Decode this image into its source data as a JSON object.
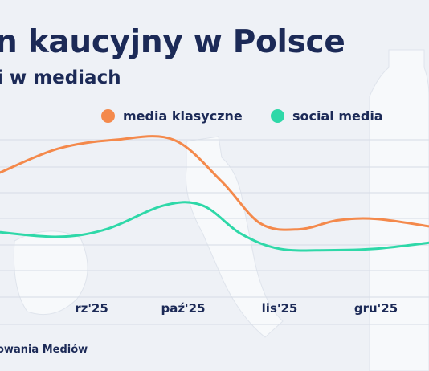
{
  "header": {
    "title": "n kaucyjny w Polsce",
    "subtitle": "i w mediach"
  },
  "legend": {
    "items": [
      {
        "label": "media klasyczne",
        "color": "#f4894b"
      },
      {
        "label": "social media",
        "color": "#2ed8a8"
      }
    ]
  },
  "source": {
    "text": "owania Mediów"
  },
  "chart_data": {
    "type": "line",
    "title": "",
    "xlabel": "",
    "ylabel": "",
    "categories": [
      "rz'25",
      "paź'25",
      "lis'25",
      "gru'25"
    ],
    "x": [
      0.05,
      1.0,
      2.0,
      3.0
    ],
    "xlim": [
      -0.9,
      3.55
    ],
    "ylim": [
      0,
      100
    ],
    "grid": true,
    "legend_position": "top",
    "series": [
      {
        "name": "media klasyczne",
        "color": "#f4894b",
        "x": [
          -0.9,
          -0.3,
          0.3,
          0.9,
          1.4,
          1.8,
          2.2,
          2.6,
          3.0,
          3.55
        ],
        "values": [
          78,
          94,
          100,
          100,
          72,
          44,
          40,
          46,
          47,
          42
        ]
      },
      {
        "name": "social media",
        "color": "#2ed8a8",
        "x": [
          -0.9,
          -0.3,
          0.2,
          0.8,
          1.2,
          1.6,
          2.0,
          2.5,
          3.0,
          3.55
        ],
        "values": [
          38,
          35,
          40,
          56,
          56,
          37,
          27,
          26,
          27,
          31
        ]
      }
    ]
  }
}
